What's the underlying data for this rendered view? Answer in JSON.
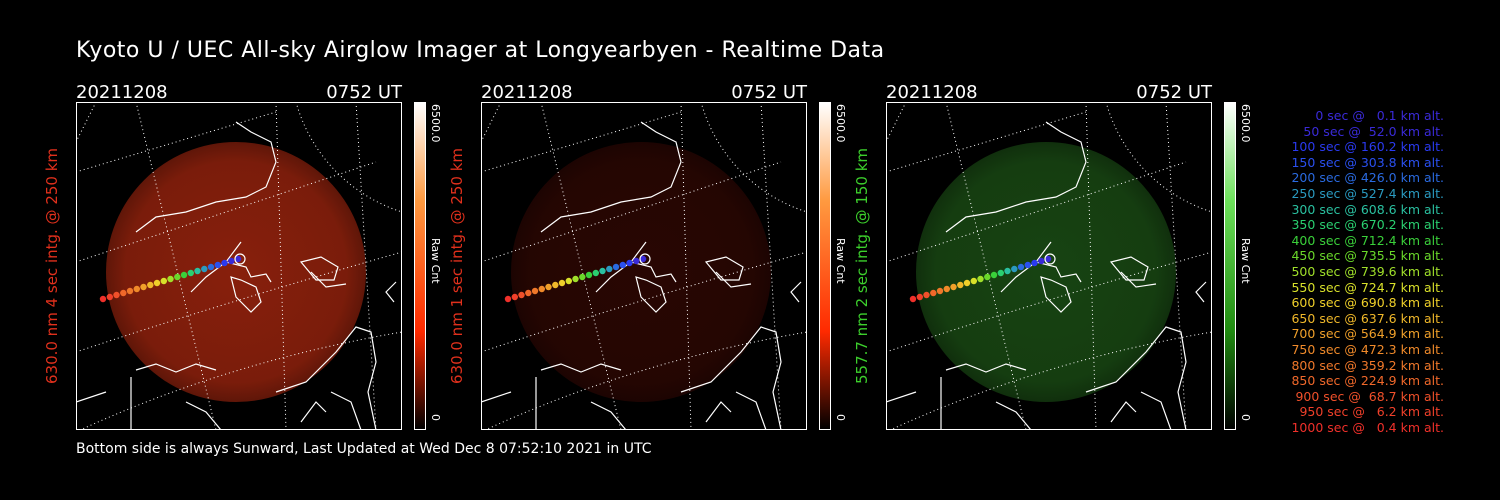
{
  "header": {
    "title": "Kyoto U / UEC All-sky Airglow Imager at Longyearbyen - Realtime Data"
  },
  "panels": [
    {
      "date": "20211208",
      "time": "0752 UT",
      "side_label": "630.0 nm 4 sec intg. @ 250 km",
      "label_color": "#e0301c",
      "cbar_max": "6500.0",
      "cbar_unit": "Raw Cnt",
      "cbar_min": "0",
      "glow_color": "#b52a10",
      "glow_opacity": 0.75,
      "bar_top": "#ff2a00",
      "bar_mid": "#ff9a40"
    },
    {
      "date": "20211208",
      "time": "0752 UT",
      "side_label": "630.0 nm 1 sec intg. @ 250 km",
      "label_color": "#e0301c",
      "cbar_max": "6500.0",
      "cbar_unit": "Raw Cnt",
      "cbar_min": "0",
      "glow_color": "#5a0e06",
      "glow_opacity": 0.45,
      "bar_top": "#ff2a00",
      "bar_mid": "#ff9a40"
    },
    {
      "date": "20211208",
      "time": "0752 UT",
      "side_label": "557.7 nm 2 sec intg. @ 150 km",
      "label_color": "#3ccf2c",
      "cbar_max": "6500.0",
      "cbar_unit": "Raw Cnt",
      "cbar_min": "0",
      "glow_color": "#1f5a18",
      "glow_opacity": 0.75,
      "bar_top": "#1f8a10",
      "bar_mid": "#6ce05a"
    }
  ],
  "legend": [
    {
      "text": "0 sec @   0.1 km alt.",
      "color": "#3a2ad8"
    },
    {
      "text": "50 sec @  52.0 km alt.",
      "color": "#3a2ad8"
    },
    {
      "text": "100 sec @ 160.2 km alt.",
      "color": "#2a3af0"
    },
    {
      "text": "150 sec @ 303.8 km alt.",
      "color": "#2a50f0"
    },
    {
      "text": "200 sec @ 426.0 km alt.",
      "color": "#2a6ae0"
    },
    {
      "text": "250 sec @ 527.4 km alt.",
      "color": "#2a9ac0"
    },
    {
      "text": "300 sec @ 608.6 km alt.",
      "color": "#2ac0a0"
    },
    {
      "text": "350 sec @ 670.2 km alt.",
      "color": "#2ad070"
    },
    {
      "text": "400 sec @ 712.4 km alt.",
      "color": "#3ad03a"
    },
    {
      "text": "450 sec @ 735.5 km alt.",
      "color": "#6ad82a"
    },
    {
      "text": "500 sec @ 739.6 km alt.",
      "color": "#a0e02a"
    },
    {
      "text": "550 sec @ 724.7 km alt.",
      "color": "#d8e02a"
    },
    {
      "text": "600 sec @ 690.8 km alt.",
      "color": "#f0d02a"
    },
    {
      "text": "650 sec @ 637.6 km alt.",
      "color": "#f0b82a"
    },
    {
      "text": "700 sec @ 564.9 km alt.",
      "color": "#f0a02a"
    },
    {
      "text": "750 sec @ 472.3 km alt.",
      "color": "#f08a2a"
    },
    {
      "text": "800 sec @ 359.2 km alt.",
      "color": "#f0782a"
    },
    {
      "text": "850 sec @ 224.9 km alt.",
      "color": "#f0682a"
    },
    {
      "text": "900 sec @  68.7 km alt.",
      "color": "#f0502a"
    },
    {
      "text": "950 sec @   6.2 km alt.",
      "color": "#f0402a"
    },
    {
      "text": "1000 sec @   0.4 km alt.",
      "color": "#f0302a"
    }
  ],
  "footer": {
    "text": "Bottom side is always Sunward, Last Updated at Wed Dec  8 07:52:10 2021 in UTC"
  }
}
